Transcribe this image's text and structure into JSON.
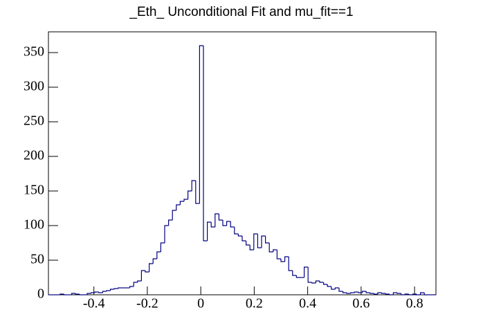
{
  "chart_data": {
    "type": "histogram",
    "title": "_Eth_ Unconditional Fit and mu_fit==1",
    "color": "#000080",
    "bins": [
      -0.57,
      -0.5555,
      -0.541,
      -0.5265,
      -0.512,
      -0.4975,
      -0.483,
      -0.4685,
      -0.454,
      -0.4395,
      -0.425,
      -0.4105,
      -0.396,
      -0.3815,
      -0.367,
      -0.3525,
      -0.338,
      -0.3235,
      -0.309,
      -0.2945,
      -0.28,
      -0.2655,
      -0.251,
      -0.2365,
      -0.222,
      -0.2075,
      -0.193,
      -0.1785,
      -0.164,
      -0.1495,
      -0.135,
      -0.1205,
      -0.106,
      -0.0915,
      -0.077,
      -0.0625,
      -0.048,
      -0.0335,
      -0.019,
      -0.0045,
      0.01,
      0.0245,
      0.039,
      0.0535,
      0.068,
      0.0825,
      0.097,
      0.1115,
      0.126,
      0.1405,
      0.155,
      0.1695,
      0.184,
      0.1985,
      0.213,
      0.2275,
      0.242,
      0.2565,
      0.271,
      0.2855,
      0.3,
      0.3145,
      0.329,
      0.3435,
      0.358,
      0.3725,
      0.387,
      0.4015,
      0.416,
      0.4305,
      0.445,
      0.4595,
      0.474,
      0.4885,
      0.503,
      0.5175,
      0.532,
      0.5465,
      0.561,
      0.5755,
      0.59,
      0.6045,
      0.619,
      0.6335,
      0.648,
      0.6625,
      0.677,
      0.6915,
      0.706,
      0.7205,
      0.735,
      0.7495,
      0.764,
      0.7785,
      0.793,
      0.8075,
      0.822,
      0.8365,
      0.851,
      0.8655,
      0.88
    ],
    "values": [
      0,
      0,
      0,
      1,
      0,
      0,
      2,
      1,
      0,
      0,
      2,
      3,
      4,
      3,
      5,
      6,
      8,
      9,
      10,
      10,
      10,
      12,
      18,
      20,
      35,
      33,
      45,
      52,
      62,
      75,
      100,
      108,
      122,
      130,
      135,
      138,
      150,
      165,
      132,
      360,
      78,
      105,
      98,
      117,
      108,
      100,
      106,
      98,
      88,
      85,
      78,
      72,
      65,
      88,
      68,
      85,
      75,
      62,
      65,
      52,
      48,
      55,
      35,
      28,
      25,
      25,
      40,
      18,
      17,
      20,
      18,
      15,
      12,
      8,
      10,
      5,
      3,
      2,
      3,
      4,
      3,
      5,
      3,
      2,
      1,
      3,
      2,
      1,
      0,
      3,
      2,
      0,
      1,
      0,
      1,
      0,
      3,
      0,
      0,
      0
    ],
    "xlim": [
      -0.57,
      0.88
    ],
    "ylim": [
      0,
      380
    ],
    "xticks": [
      -0.4,
      -0.2,
      0,
      0.2,
      0.4,
      0.6,
      0.8
    ],
    "yticks": [
      0,
      50,
      100,
      150,
      200,
      250,
      300,
      350
    ]
  }
}
